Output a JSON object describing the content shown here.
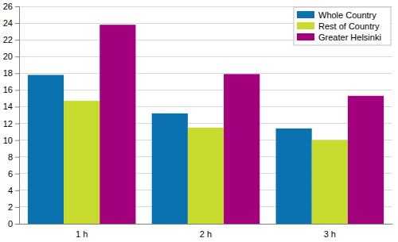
{
  "chart_data": {
    "type": "bar",
    "categories": [
      "1 h",
      "2 h",
      "3 h"
    ],
    "series": [
      {
        "name": "Whole Country",
        "color": "#0a72b0",
        "values": [
          17.8,
          13.2,
          11.4
        ]
      },
      {
        "name": "Rest of Country",
        "color": "#c7dc2f",
        "values": [
          14.7,
          11.5,
          10.0
        ]
      },
      {
        "name": "Greater Helsinki",
        "color": "#a3007e",
        "values": [
          23.8,
          17.9,
          15.3
        ]
      }
    ],
    "ylim": [
      0,
      26
    ],
    "yticks": [
      0,
      2,
      4,
      6,
      8,
      10,
      12,
      14,
      16,
      18,
      20,
      22,
      24,
      26
    ],
    "grid": true,
    "legend": "upper right"
  }
}
